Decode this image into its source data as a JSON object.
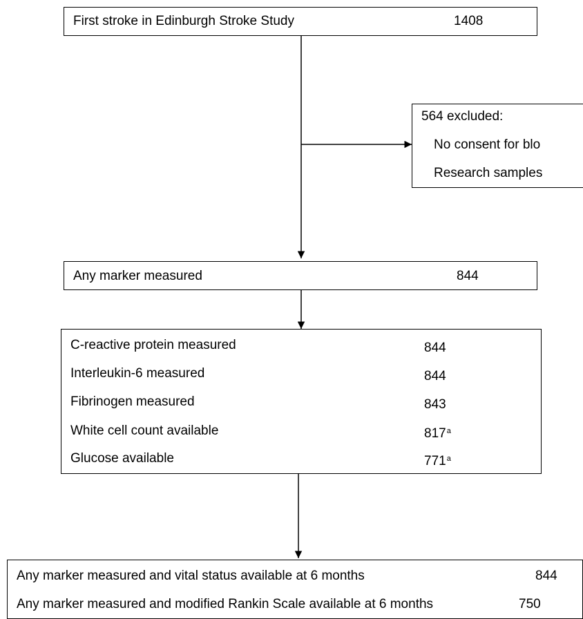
{
  "start": {
    "label": "First stroke in Edinburgh Stroke Study",
    "count": "1408"
  },
  "excluded": {
    "title": "564 excluded:",
    "reasons": [
      "No consent for blo",
      "Research samples"
    ]
  },
  "any_marker": {
    "label": "Any marker measured",
    "count": "844"
  },
  "markers": [
    {
      "label": "C-reactive protein measured",
      "count": "844",
      "note": ""
    },
    {
      "label": "Interleukin-6 measured",
      "count": "844",
      "note": ""
    },
    {
      "label": "Fibrinogen measured",
      "count": "843",
      "note": ""
    },
    {
      "label": "White cell count available",
      "count": "817",
      "note": "a"
    },
    {
      "label": "Glucose available",
      "count": "771",
      "note": "a"
    }
  ],
  "outcomes": [
    {
      "label": "Any marker measured and vital status available at 6 months",
      "count": "844"
    },
    {
      "label": "Any marker measured and modified Rankin Scale available at 6 months",
      "count": "750"
    }
  ]
}
